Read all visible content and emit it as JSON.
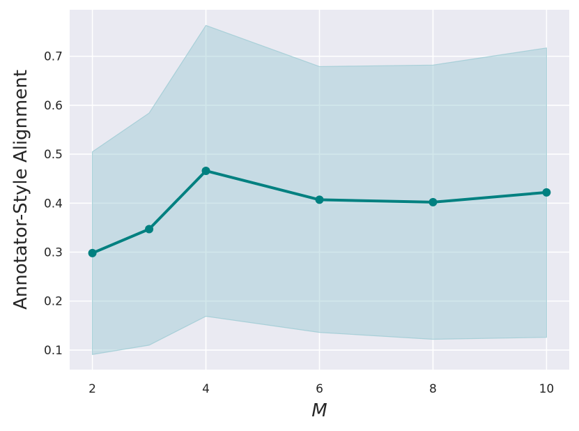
{
  "chart_data": {
    "type": "line",
    "title": "",
    "xlabel": "M",
    "ylabel": "Annotator-Style Alignment",
    "x": [
      2,
      3,
      4,
      6,
      8,
      10
    ],
    "xticks": [
      2,
      4,
      6,
      8,
      10
    ],
    "xlim": [
      1.6,
      10.4
    ],
    "yticks": [
      0.1,
      0.2,
      0.3,
      0.4,
      0.5,
      0.6,
      0.7
    ],
    "ylim": [
      0.06,
      0.795
    ],
    "grid": true,
    "background_color": "#eaeaf2",
    "line_color": "#008080",
    "band_color": "#9ccad3",
    "series": [
      {
        "values": [
          0.298,
          0.347,
          0.466,
          0.407,
          0.402,
          0.422
        ],
        "lower": [
          0.091,
          0.11,
          0.169,
          0.136,
          0.122,
          0.126
        ],
        "upper": [
          0.505,
          0.584,
          0.763,
          0.679,
          0.682,
          0.717
        ]
      }
    ]
  }
}
